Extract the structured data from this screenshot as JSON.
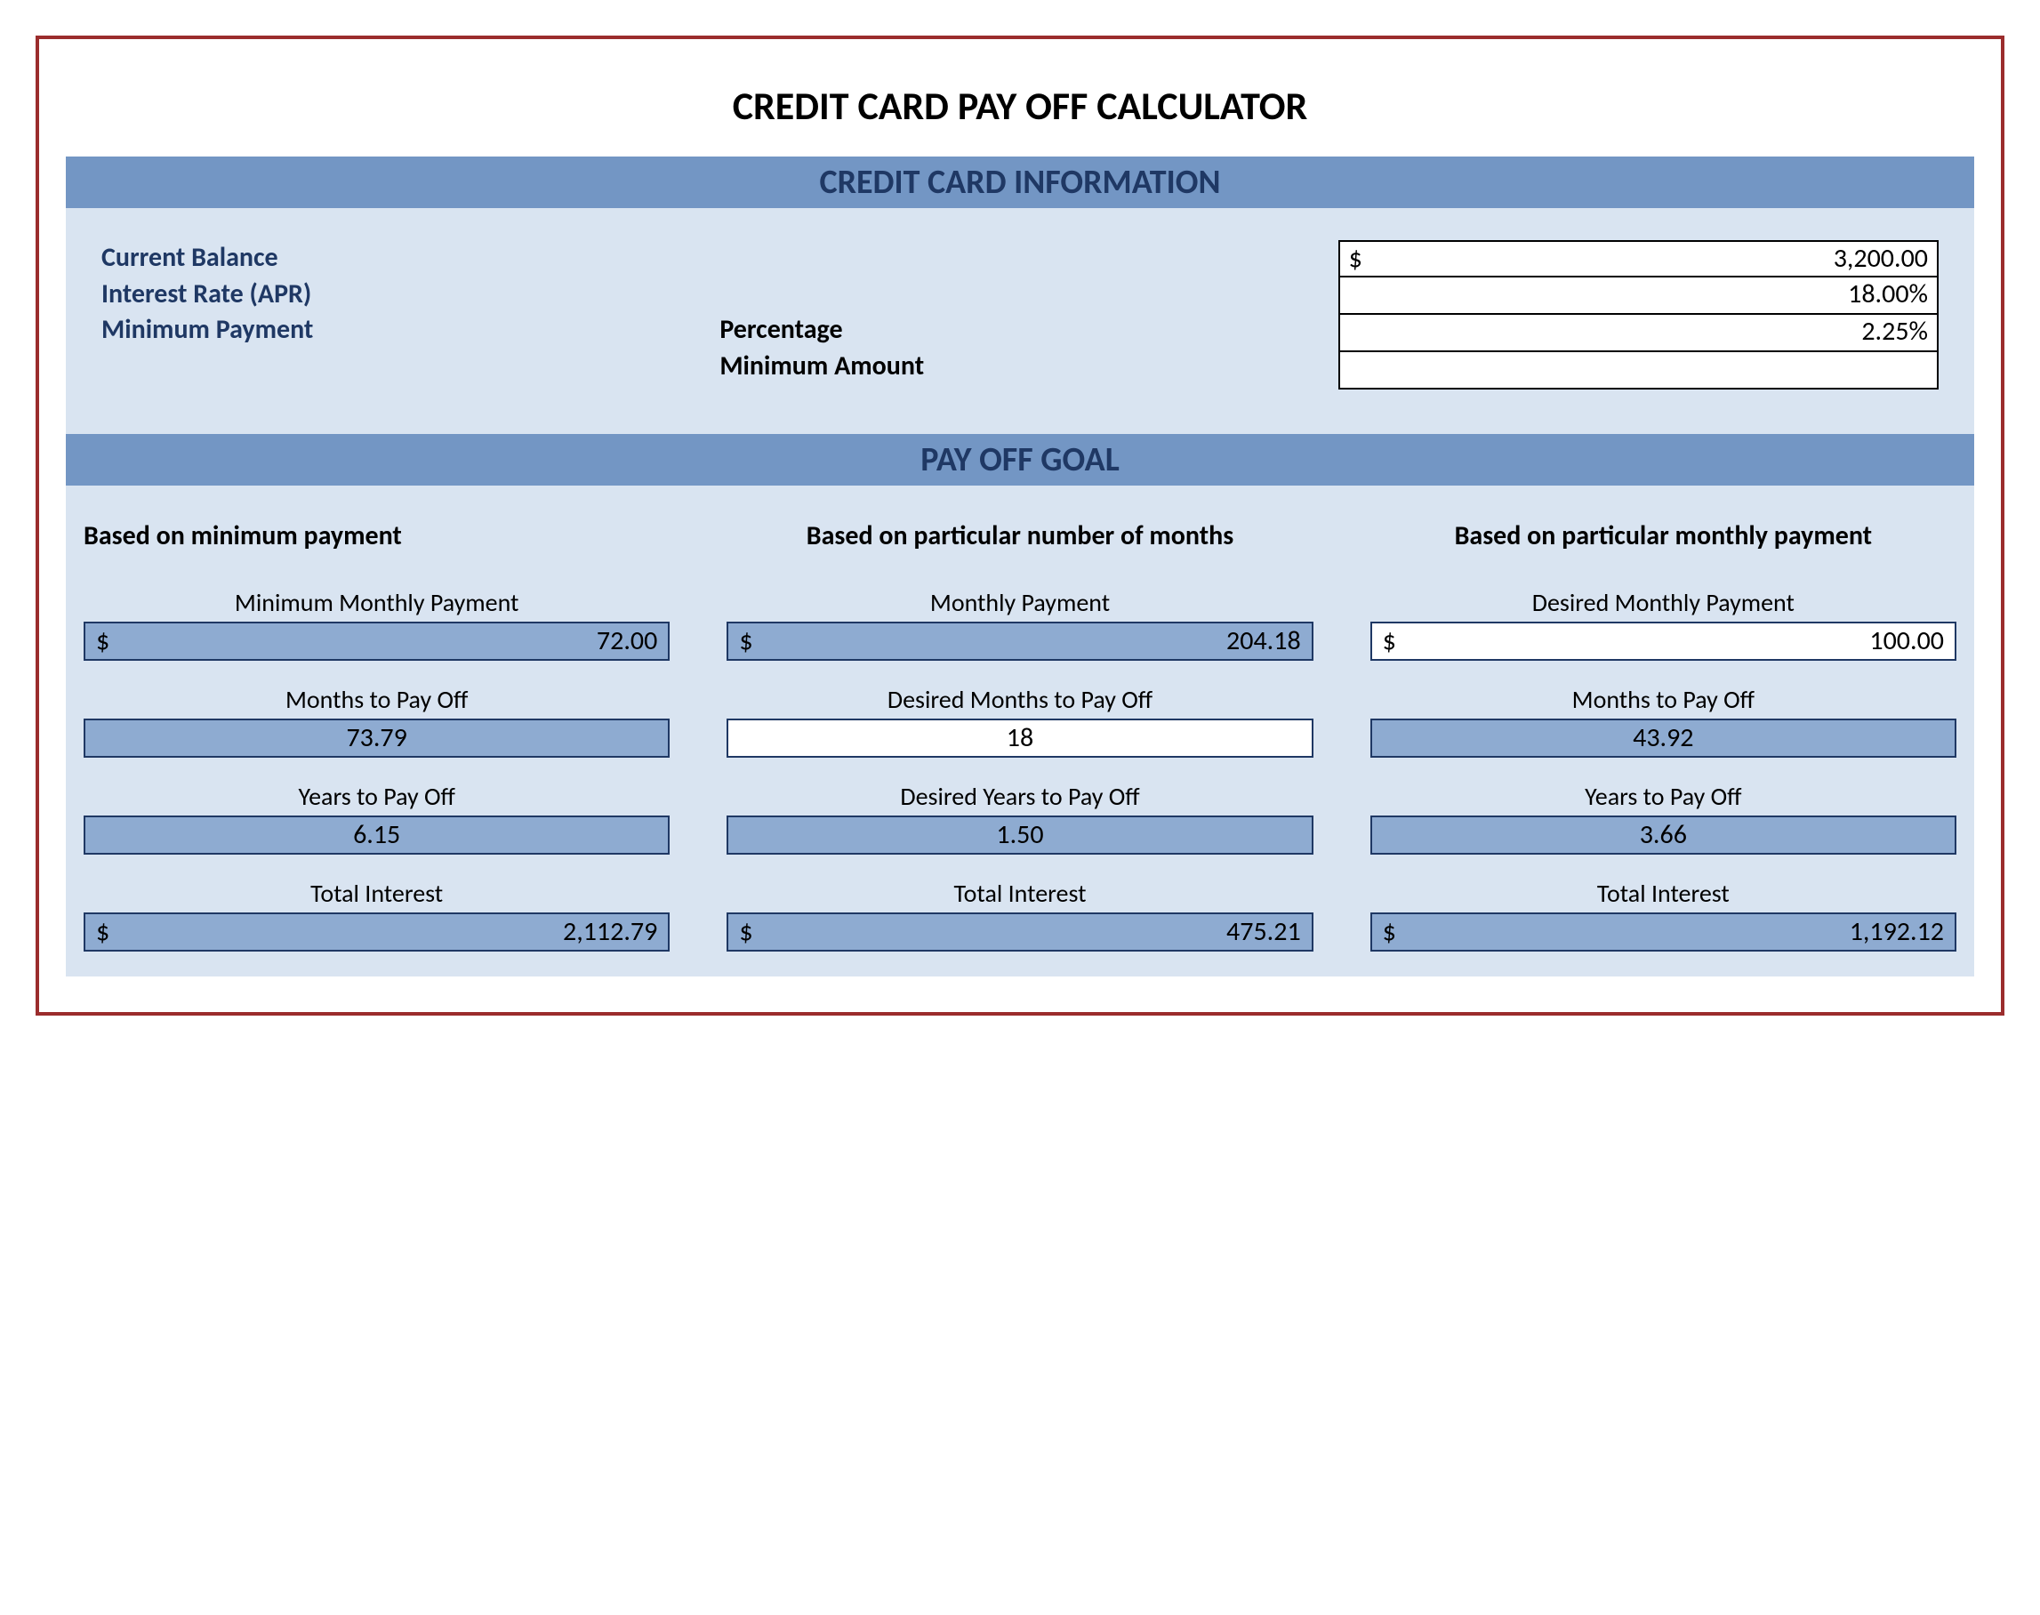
{
  "colors": {
    "frame_border": "#9b2d2d",
    "banner_bg": "#7396c4",
    "banner_text": "#1f3864",
    "panel_bg": "#d9e4f1",
    "filled_box_bg": "#8eabd1",
    "box_border": "#1f3864",
    "label_dark": "#1f3864"
  },
  "typography": {
    "family": "Calibri",
    "title_size_pt": 33,
    "banner_size_pt": 28,
    "label_size_pt": 22,
    "value_size_pt": 22
  },
  "title": "CREDIT CARD PAY OFF CALCULATOR",
  "sections": {
    "info_banner": "CREDIT CARD INFORMATION",
    "goal_banner": "PAY OFF GOAL"
  },
  "info": {
    "labels": {
      "current_balance": "Current Balance",
      "interest_rate": "Interest Rate (APR)",
      "minimum_payment": "Minimum Payment",
      "percentage": "Percentage",
      "minimum_amount": "Minimum Amount"
    },
    "values": {
      "current_balance": "3,200.00",
      "interest_rate": "18.00%",
      "percentage": "2.25%",
      "minimum_amount": ""
    },
    "currency_symbol": "$"
  },
  "goals": {
    "col1": {
      "head": "Based on minimum payment",
      "fields": [
        {
          "label": "Minimum Monthly Payment",
          "value": "72.00",
          "currency": true,
          "filled": true,
          "align": "right"
        },
        {
          "label": "Months to Pay Off",
          "value": "73.79",
          "currency": false,
          "filled": true,
          "align": "center"
        },
        {
          "label": "Years to Pay Off",
          "value": "6.15",
          "currency": false,
          "filled": true,
          "align": "center"
        },
        {
          "label": "Total Interest",
          "value": "2,112.79",
          "currency": true,
          "filled": true,
          "align": "right"
        }
      ]
    },
    "col2": {
      "head": "Based on particular number of months",
      "fields": [
        {
          "label": "Monthly Payment",
          "value": "204.18",
          "currency": true,
          "filled": true,
          "align": "right"
        },
        {
          "label": "Desired Months to Pay Off",
          "value": "18",
          "currency": false,
          "filled": false,
          "align": "center"
        },
        {
          "label": "Desired Years to Pay Off",
          "value": "1.50",
          "currency": false,
          "filled": true,
          "align": "center"
        },
        {
          "label": "Total Interest",
          "value": "475.21",
          "currency": true,
          "filled": true,
          "align": "right"
        }
      ]
    },
    "col3": {
      "head": "Based on particular monthly payment",
      "fields": [
        {
          "label": "Desired Monthly Payment",
          "value": "100.00",
          "currency": true,
          "filled": false,
          "align": "right"
        },
        {
          "label": "Months to Pay Off",
          "value": "43.92",
          "currency": false,
          "filled": true,
          "align": "center"
        },
        {
          "label": "Years to Pay Off",
          "value": "3.66",
          "currency": false,
          "filled": true,
          "align": "center"
        },
        {
          "label": "Total Interest",
          "value": "1,192.12",
          "currency": true,
          "filled": true,
          "align": "right"
        }
      ]
    }
  }
}
